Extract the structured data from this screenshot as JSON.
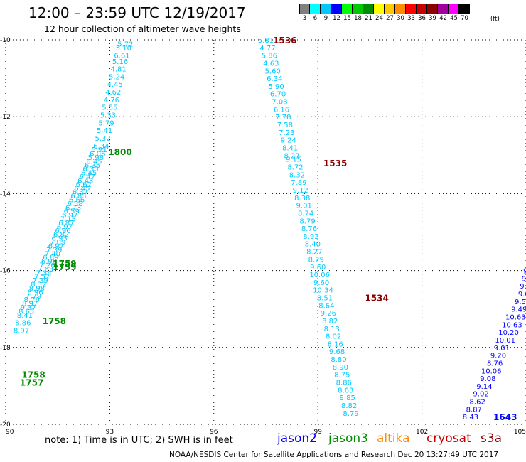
{
  "header": {
    "title": "12:00 – 23:59 UTC 12/19/2017",
    "subtitle": "12 hour collection of altimeter wave heights"
  },
  "legend": {
    "labels": [
      "3",
      "6",
      "9",
      "12",
      "15",
      "18",
      "21",
      "24",
      "27",
      "30",
      "33",
      "36",
      "39",
      "42",
      "45",
      "70"
    ],
    "unit": "(ft)",
    "colors": [
      "#808080",
      "#00ffff",
      "#00c8ff",
      "#0000ff",
      "#00ff00",
      "#00c800",
      "#008c00",
      "#ffff00",
      "#ffc800",
      "#ff8c00",
      "#ff0000",
      "#c80000",
      "#8c0000",
      "#a000a0",
      "#ff00ff",
      "#000000"
    ]
  },
  "note": "note: 1) Time is in UTC; 2) SWH is in feet",
  "satellites": [
    {
      "name": "jason2",
      "color": "#0000ff"
    },
    {
      "name": "jason3",
      "color": "#008c00"
    },
    {
      "name": "altika",
      "color": "#ff8c00"
    },
    {
      "name": "cryosat",
      "color": "#c80000"
    },
    {
      "name": "s3a",
      "color": "#8c0000"
    }
  ],
  "footer": "NOAA/NESDIS Center for Satellite Applications and Research    Dec 20 13:27:49 UTC 2017",
  "chart_data": {
    "type": "scatter",
    "xlim": [
      90,
      105
    ],
    "ylim": [
      -20,
      -10
    ],
    "xticks": [
      "90",
      "93",
      "96",
      "99",
      "102",
      "105"
    ],
    "yticks": [
      "-10",
      "-12",
      "-14",
      "-16",
      "-18",
      "-20"
    ],
    "grid": true,
    "tracks": [
      {
        "satellite": "jason2",
        "color": "#00c8ff",
        "x": [
          93.45,
          93.4,
          93.35,
          93.3,
          93.25,
          93.2,
          93.15,
          93.1,
          93.05,
          93.0,
          92.95,
          92.9,
          92.85,
          92.8,
          92.75,
          92.7,
          92.65,
          92.6,
          92.55,
          92.5,
          92.45,
          92.4,
          92.35,
          92.3,
          92.25,
          92.2,
          92.15,
          92.1,
          92.05,
          92.0,
          91.95,
          91.9,
          91.85,
          91.8,
          91.75,
          91.7,
          91.65,
          91.6,
          91.55,
          91.5,
          91.45,
          91.4,
          91.35,
          91.3,
          91.25,
          91.2,
          91.15,
          91.1,
          91.05,
          91.0,
          90.95,
          90.9,
          90.85,
          90.8,
          90.75,
          90.7,
          90.65,
          90.6,
          90.55,
          90.5,
          90.45
        ],
        "y": [
          -10.1,
          -10.2,
          -10.4,
          -10.55,
          -10.75,
          -10.95,
          -11.15,
          -11.35,
          -11.55,
          -11.75,
          -11.95,
          -12.15,
          -12.35,
          -12.55,
          -12.75,
          -12.85,
          -12.95,
          -13.05,
          -13.15,
          -13.25,
          -13.35,
          -13.45,
          -13.55,
          -13.65,
          -13.75,
          -13.85,
          -13.95,
          -14.05,
          -14.15,
          -14.25,
          -14.35,
          -14.45,
          -14.55,
          -14.65,
          -14.75,
          -14.85,
          -14.95,
          -15.05,
          -15.15,
          -15.25,
          -15.35,
          -15.45,
          -15.55,
          -15.65,
          -15.75,
          -15.85,
          -15.95,
          -16.05,
          -16.15,
          -16.25,
          -16.35,
          -16.45,
          -16.55,
          -16.65,
          -16.75,
          -16.85,
          -16.95,
          -17.05,
          -17.15,
          -17.35,
          -17.55
        ],
        "labels": [
          "5.72",
          "5.10",
          "6.61",
          "5.16",
          "4.81",
          "5.24",
          "4.45",
          "4.62",
          "4.76",
          "5.55",
          "5.33",
          "5.79",
          "5.41",
          "5.32",
          "6.34",
          "5.91",
          "6.06",
          "5.98",
          "6.45",
          "6.35",
          "6.35",
          "6.45",
          "6.47",
          "6.43",
          "6.62",
          "6.45",
          "6.37",
          "6.85",
          "6.66",
          "6.58",
          "6.73",
          "6.59",
          "6.97",
          "7.15",
          "6.87",
          "6.97",
          "6.96",
          "6.82",
          "6.93",
          "7.09",
          "6.97",
          "7.39",
          "7.40",
          "6.89",
          "6.98",
          "7.26",
          "7.63",
          "7.34",
          "7.52",
          "7.39",
          "8.32",
          "8.98",
          "6.96",
          "7.79",
          "8.76",
          "8.97",
          "9.37",
          "8.65",
          "8.41",
          "8.86",
          "8.97"
        ]
      },
      {
        "satellite": "jason2",
        "color": "#00c8ff",
        "x": [
          97.5,
          97.55,
          97.6,
          97.65,
          97.7,
          97.75,
          97.8,
          97.85,
          97.9,
          97.95,
          98.0,
          98.05,
          98.1,
          98.15,
          98.2,
          98.25,
          98.3,
          98.35,
          98.4,
          98.45,
          98.5,
          98.55,
          98.6,
          98.65,
          98.7,
          98.75,
          98.8,
          98.85,
          98.9,
          98.95,
          99.0,
          99.05,
          99.1,
          99.15,
          99.2,
          99.25,
          99.3,
          99.35,
          99.4,
          99.45,
          99.5,
          99.55,
          99.6,
          99.65,
          99.7,
          99.75,
          99.8,
          99.85,
          99.9,
          99.95
        ],
        "y": [
          -10.0,
          -10.2,
          -10.4,
          -10.6,
          -10.8,
          -11.0,
          -11.2,
          -11.4,
          -11.6,
          -11.8,
          -12.0,
          -12.2,
          -12.4,
          -12.6,
          -12.8,
          -13.0,
          -13.1,
          -13.3,
          -13.5,
          -13.7,
          -13.9,
          -14.1,
          -14.3,
          -14.5,
          -14.7,
          -14.9,
          -15.1,
          -15.3,
          -15.5,
          -15.7,
          -15.9,
          -16.1,
          -16.3,
          -16.5,
          -16.7,
          -16.9,
          -17.1,
          -17.3,
          -17.5,
          -17.7,
          -17.9,
          -18.1,
          -18.3,
          -18.5,
          -18.7,
          -18.9,
          -19.1,
          -19.3,
          -19.5,
          -19.7
        ],
        "labels": [
          "5.81",
          "4.77",
          "5.86",
          "4.63",
          "5.60",
          "6.34",
          "5.90",
          "6.70",
          "7.03",
          "6.16",
          "7.78",
          "7.58",
          "7.23",
          "9.24",
          "8.41",
          "8.27",
          "9.15",
          "8.72",
          "8.32",
          "7.89",
          "9.12",
          "8.38",
          "9.01",
          "8.74",
          "8.79",
          "8.76",
          "8.92",
          "8.40",
          "8.27",
          "8.29",
          "9.60",
          "10.06",
          "9.60",
          "10.34",
          "8.51",
          "8.64",
          "9.26",
          "8.82",
          "8.13",
          "8.02",
          "8.16",
          "9.68",
          "8.80",
          "8.90",
          "8.75",
          "8.86",
          "8.63",
          "8.85",
          "8.82",
          "8.79"
        ]
      },
      {
        "satellite": "jason2",
        "color": "#0000ff",
        "x": [
          103.4,
          103.5,
          103.6,
          103.7,
          103.8,
          103.9,
          104.0,
          104.1,
          104.2,
          104.3,
          104.4,
          104.5,
          104.6,
          104.7,
          104.8,
          104.9,
          105.0,
          105.05,
          105.1,
          105.15
        ],
        "y": [
          -19.8,
          -19.6,
          -19.4,
          -19.2,
          -19.0,
          -18.8,
          -18.6,
          -18.4,
          -18.2,
          -18.0,
          -17.8,
          -17.6,
          -17.4,
          -17.2,
          -17.0,
          -16.8,
          -16.6,
          -16.4,
          -16.2,
          -16.0
        ],
        "labels": [
          "8.43",
          "8.87",
          "8.62",
          "9.02",
          "9.14",
          "9.08",
          "10.06",
          "8.76",
          "9.20",
          "9.01",
          "10.01",
          "10.20",
          "10.63",
          "10.63",
          "9.49",
          "9.54",
          "9.02",
          "9.21",
          "9.40",
          "9.55"
        ]
      }
    ],
    "time_labels": [
      {
        "text": "1536",
        "x": 98.05,
        "y": -10.0,
        "color": "#8c0000"
      },
      {
        "text": "1800",
        "x": 93.3,
        "y": -12.9,
        "color": "#008c00"
      },
      {
        "text": "1535",
        "x": 99.5,
        "y": -13.2,
        "color": "#8c0000"
      },
      {
        "text": "1759",
        "x": 91.7,
        "y": -15.8,
        "color": "#008c00"
      },
      {
        "text": "1759",
        "x": 91.7,
        "y": -15.9,
        "color": "#008c00"
      },
      {
        "text": "1534",
        "x": 100.7,
        "y": -16.7,
        "color": "#8c0000"
      },
      {
        "text": "1758",
        "x": 91.4,
        "y": -17.3,
        "color": "#008c00"
      },
      {
        "text": "1758",
        "x": 90.8,
        "y": -18.7,
        "color": "#008c00"
      },
      {
        "text": "1757",
        "x": 90.75,
        "y": -18.9,
        "color": "#008c00"
      },
      {
        "text": "1643",
        "x": 104.4,
        "y": -19.8,
        "color": "#0000ff"
      }
    ]
  }
}
